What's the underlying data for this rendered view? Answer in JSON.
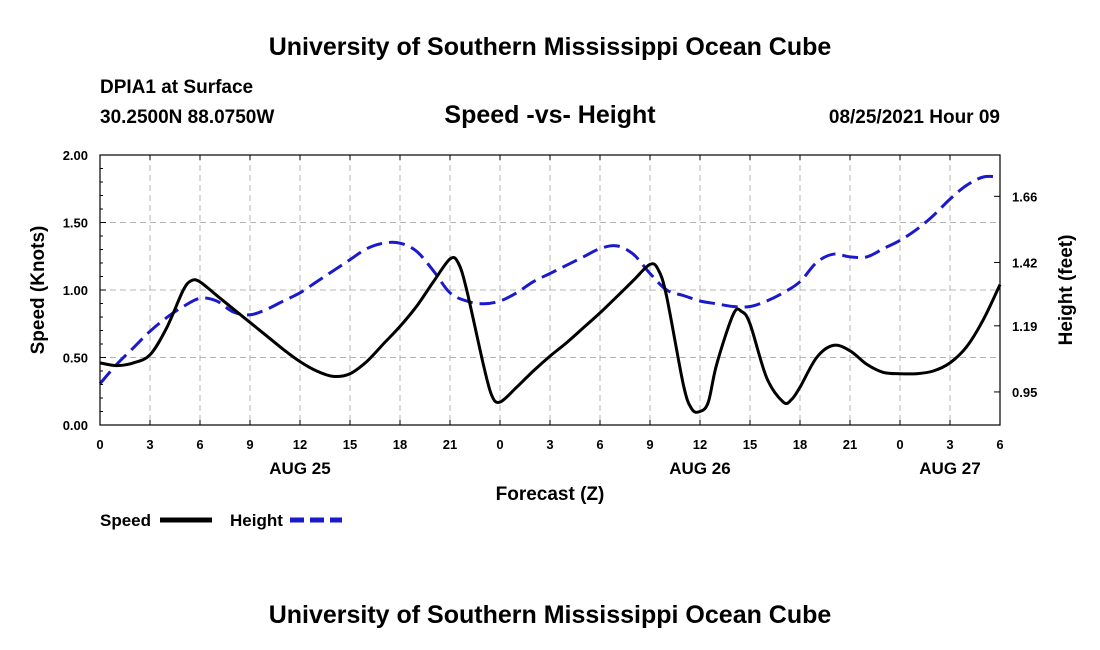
{
  "header": {
    "title_top": "University of Southern Mississippi Ocean Cube",
    "station": "DPIA1 at Surface",
    "coords": "30.2500N  88.0750W",
    "chart_title": "Speed -vs- Height",
    "datetime": "08/25/2021 Hour 09",
    "title_bottom": "University of Southern Mississippi Ocean Cube"
  },
  "colors": {
    "speed": "#000000",
    "height": "#1a1acc",
    "grid": "#b4b4b4"
  },
  "chart_data": {
    "type": "line",
    "title": "Speed -vs- Height",
    "xlabel": "Forecast (Z)",
    "ylabel_left": "Speed (Knots)",
    "ylabel_right": "Height (feet)",
    "xlim": [
      0,
      54
    ],
    "ylim_left": [
      0,
      2
    ],
    "ylim_right": [
      0.83,
      1.81
    ],
    "x_ticks": [
      0,
      3,
      6,
      9,
      12,
      15,
      18,
      21,
      24,
      27,
      30,
      33,
      36,
      39,
      42,
      45,
      48,
      51,
      54
    ],
    "x_tick_labels": [
      "0",
      "3",
      "6",
      "9",
      "12",
      "15",
      "18",
      "21",
      "0",
      "3",
      "6",
      "9",
      "12",
      "15",
      "18",
      "21",
      "0",
      "3",
      "6"
    ],
    "y_left_ticks": [
      0,
      0.5,
      1,
      1.5,
      2
    ],
    "y_left_tick_labels": [
      "0.00",
      "0.50",
      "1.00",
      "1.50",
      "2.00"
    ],
    "y_right_ticks": [
      0.95,
      1.19,
      1.42,
      1.66
    ],
    "y_right_tick_labels": [
      "0.95",
      "1.19",
      "1.42",
      "1.66"
    ],
    "date_labels": [
      {
        "x": 12,
        "label": "AUG 25"
      },
      {
        "x": 36,
        "label": "AUG 26"
      },
      {
        "x": 51,
        "label": "AUG 27"
      }
    ],
    "grid": true,
    "series": [
      {
        "name": "Speed",
        "axis": "left",
        "style": "solid",
        "x": [
          0,
          1,
          2,
          3,
          4,
          5,
          5.5,
          6,
          7,
          8,
          9,
          10,
          11,
          12,
          13,
          14,
          15,
          16,
          17,
          18,
          19,
          20,
          21,
          21.5,
          22,
          23,
          23.5,
          24,
          25,
          26,
          27,
          28,
          29,
          30,
          31,
          32,
          33,
          33.5,
          34,
          35,
          35.5,
          36,
          36.5,
          37,
          38,
          38.5,
          39,
          40,
          41,
          41.5,
          42,
          43,
          44,
          45,
          46,
          47,
          48,
          49,
          50,
          51,
          52,
          53,
          54
        ],
        "values": [
          0.46,
          0.44,
          0.46,
          0.52,
          0.72,
          1.0,
          1.07,
          1.06,
          0.96,
          0.86,
          0.76,
          0.66,
          0.56,
          0.47,
          0.4,
          0.36,
          0.38,
          0.47,
          0.6,
          0.73,
          0.88,
          1.06,
          1.23,
          1.2,
          1.0,
          0.45,
          0.22,
          0.17,
          0.28,
          0.4,
          0.51,
          0.61,
          0.72,
          0.83,
          0.95,
          1.07,
          1.19,
          1.15,
          0.95,
          0.3,
          0.12,
          0.1,
          0.17,
          0.45,
          0.82,
          0.84,
          0.75,
          0.35,
          0.17,
          0.19,
          0.28,
          0.5,
          0.59,
          0.55,
          0.45,
          0.39,
          0.38,
          0.38,
          0.4,
          0.46,
          0.58,
          0.78,
          1.04
        ]
      },
      {
        "name": "Height",
        "axis": "right",
        "style": "dashed",
        "x": [
          0,
          1,
          2,
          3,
          4,
          5,
          6,
          7,
          8,
          9,
          10,
          11,
          12,
          13,
          14,
          15,
          16,
          17,
          18,
          19,
          20,
          21,
          22,
          23,
          24,
          25,
          26,
          27,
          28,
          29,
          30,
          31,
          32,
          33,
          34,
          35,
          36,
          37,
          38,
          39,
          40,
          41,
          42,
          43,
          44,
          45,
          46,
          47,
          48,
          49,
          50,
          51,
          52,
          53,
          54
        ],
        "values": [
          0.98,
          1.05,
          1.11,
          1.17,
          1.22,
          1.26,
          1.29,
          1.28,
          1.24,
          1.23,
          1.25,
          1.28,
          1.31,
          1.35,
          1.39,
          1.43,
          1.47,
          1.49,
          1.49,
          1.46,
          1.39,
          1.31,
          1.28,
          1.27,
          1.28,
          1.31,
          1.35,
          1.38,
          1.41,
          1.44,
          1.47,
          1.48,
          1.45,
          1.38,
          1.32,
          1.3,
          1.28,
          1.27,
          1.26,
          1.26,
          1.28,
          1.31,
          1.35,
          1.42,
          1.45,
          1.44,
          1.44,
          1.47,
          1.5,
          1.54,
          1.59,
          1.65,
          1.7,
          1.73,
          1.73
        ]
      }
    ],
    "legend": [
      {
        "label": "Speed",
        "series": "Speed"
      },
      {
        "label": "Height",
        "series": "Height"
      }
    ],
    "legend_position": "bottom-left"
  }
}
